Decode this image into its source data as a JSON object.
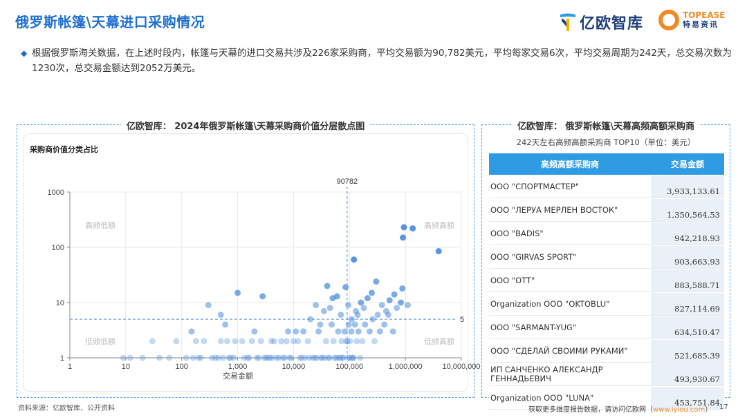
{
  "header": {
    "title": "俄罗斯帐篷\\天幕进口采购情况",
    "logo_yiou": "亿欧智库",
    "logo_topease_top": "TOPEASE",
    "logo_topease_bottom": "特易资讯"
  },
  "summary": "根据俄罗斯海关数据，在上述时段内，帐篷与天幕的进口交易共涉及226家采购商，平均交易额为90,782美元，平均每家交易6次，平均交易周期为242天，总交易次数为1230次，总交易金额达到2052万美元。",
  "left_panel": {
    "title": "亿欧智库： 2024年俄罗斯帐篷\\天幕采购商价值分层散点图",
    "subtitle": "采购商价值分类占比"
  },
  "chart_data": {
    "type": "scatter",
    "xlabel": "交易金额",
    "ylabel": "",
    "x_scale": "log",
    "y_scale": "log",
    "xlim": [
      1,
      10000000
    ],
    "ylim": [
      1,
      1000
    ],
    "x_ticks": [
      "1",
      "10",
      "100",
      "1,000",
      "10,000",
      "100,000",
      "1,000,000",
      "10,000,000"
    ],
    "y_ticks": [
      "1",
      "10",
      "100",
      "1000"
    ],
    "reference_x": 90782,
    "reference_x_label": "90782",
    "reference_y": 5,
    "reference_y_label": "5",
    "quadrant_labels": {
      "top_left": "高频低额",
      "top_right": "高频高额",
      "bottom_left": "低频低额",
      "bottom_right": "低频高额"
    },
    "points": [
      [
        3933133,
        85
      ],
      [
        1350565,
        220
      ],
      [
        942219,
        230
      ],
      [
        903664,
        150
      ],
      [
        120000,
        60
      ],
      [
        883589,
        18
      ],
      [
        827115,
        10
      ],
      [
        634510,
        14
      ],
      [
        521685,
        11
      ],
      [
        493931,
        6
      ],
      [
        453752,
        7
      ],
      [
        380000,
        9
      ],
      [
        300000,
        24
      ],
      [
        250000,
        15
      ],
      [
        210000,
        12
      ],
      [
        180000,
        8
      ],
      [
        160000,
        10
      ],
      [
        140000,
        6
      ],
      [
        130000,
        7
      ],
      [
        110000,
        5
      ],
      [
        95000,
        9
      ],
      [
        85000,
        19
      ],
      [
        70000,
        6
      ],
      [
        60000,
        13
      ],
      [
        50000,
        12
      ],
      [
        45000,
        8
      ],
      [
        40000,
        20
      ],
      [
        35000,
        7
      ],
      [
        30000,
        4
      ],
      [
        25000,
        9
      ],
      [
        20000,
        5
      ],
      [
        15000,
        3
      ],
      [
        12000,
        2
      ],
      [
        10000,
        2
      ],
      [
        8000,
        3
      ],
      [
        6000,
        2
      ],
      [
        5000,
        1
      ],
      [
        4000,
        2
      ],
      [
        3000,
        1
      ],
      [
        2000,
        3
      ],
      [
        1500,
        1
      ],
      [
        1000,
        15
      ],
      [
        900,
        2
      ],
      [
        700,
        1
      ],
      [
        500,
        2
      ],
      [
        400,
        1
      ],
      [
        300,
        9
      ],
      [
        250,
        2
      ],
      [
        200,
        1
      ],
      [
        150,
        3
      ],
      [
        120,
        1
      ],
      [
        80,
        2
      ],
      [
        60,
        1
      ],
      [
        40,
        1
      ],
      [
        30,
        2
      ],
      [
        20,
        1
      ],
      [
        12,
        1
      ],
      [
        9,
        1
      ],
      [
        2800,
        13
      ],
      [
        500,
        6
      ],
      [
        600,
        4
      ],
      [
        1800,
        2
      ],
      [
        2400,
        1
      ],
      [
        3500,
        1
      ],
      [
        4500,
        2
      ],
      [
        7000,
        1
      ],
      [
        9000,
        1
      ],
      [
        11000,
        3
      ],
      [
        14000,
        1
      ],
      [
        18000,
        2
      ],
      [
        22000,
        1
      ],
      [
        28000,
        3
      ],
      [
        33000,
        1
      ],
      [
        38000,
        2
      ],
      [
        42000,
        1
      ],
      [
        48000,
        4
      ],
      [
        52000,
        2
      ],
      [
        58000,
        1
      ],
      [
        63000,
        3
      ],
      [
        67000,
        1
      ],
      [
        72000,
        2
      ],
      [
        77000,
        1
      ],
      [
        82000,
        3
      ],
      [
        88000,
        2
      ],
      [
        93000,
        1
      ],
      [
        97000,
        4
      ],
      [
        102000,
        2
      ],
      [
        108000,
        3
      ],
      [
        115000,
        1
      ],
      [
        125000,
        4
      ],
      [
        135000,
        2
      ],
      [
        145000,
        3
      ],
      [
        155000,
        1
      ],
      [
        170000,
        2
      ],
      [
        190000,
        4
      ],
      [
        230000,
        3
      ],
      [
        260000,
        5
      ],
      [
        280000,
        2
      ],
      [
        320000,
        6
      ],
      [
        350000,
        3
      ],
      [
        420000,
        4
      ],
      [
        600000,
        3
      ],
      [
        700000,
        8
      ],
      [
        1100000,
        9
      ],
      [
        160,
        1
      ],
      [
        180,
        2
      ],
      [
        220,
        1
      ],
      [
        350,
        1
      ],
      [
        450,
        1
      ],
      [
        550,
        1
      ],
      [
        650,
        2
      ],
      [
        750,
        1
      ],
      [
        850,
        1
      ],
      [
        1200,
        2
      ],
      [
        1300,
        1
      ],
      [
        1600,
        1
      ],
      [
        2200,
        1
      ],
      [
        2600,
        2
      ],
      [
        3200,
        1
      ],
      [
        3800,
        1
      ],
      [
        4200,
        1
      ],
      [
        5500,
        1
      ],
      [
        6500,
        1
      ],
      [
        7500,
        2
      ],
      [
        8500,
        1
      ],
      [
        13000,
        1
      ],
      [
        16000,
        1
      ],
      [
        19000,
        1
      ],
      [
        24000,
        1
      ],
      [
        26000,
        1
      ],
      [
        31000,
        1
      ],
      [
        36000,
        1
      ],
      [
        44000,
        1
      ],
      [
        54000,
        1
      ],
      [
        65000,
        1
      ],
      [
        75000,
        1
      ],
      [
        90000,
        2
      ],
      [
        100000,
        1
      ],
      [
        112000,
        1
      ],
      [
        118000,
        1
      ]
    ]
  },
  "right_panel": {
    "title": "亿欧智库： 俄罗斯帐篷\\天幕高频高额采购商",
    "subtitle": "242天左右高频高额采购商 TOP10（单位：美元）",
    "columns": [
      "高频高额采购商",
      "交易金额"
    ],
    "rows": [
      {
        "name": "OOO \"СПОРТМАСТЕР\"",
        "value": "3,933,133.61"
      },
      {
        "name": "OOO \"ЛЕРУА МЕРЛЕН ВОСТОК\"",
        "value": "1,350,564.53"
      },
      {
        "name": "OOO \"BADIS\"",
        "value": "942,218.93"
      },
      {
        "name": "OOO \"GIRVAS SPORT\"",
        "value": "903,663.93"
      },
      {
        "name": "OOO \"OTT\"",
        "value": "883,588.71"
      },
      {
        "name": "Organization OOO \"OKTOBLU\"",
        "value": "827,114.69"
      },
      {
        "name": "OOO \"SARMANT-YUG\"",
        "value": "634,510.47"
      },
      {
        "name": "OOO \"СДЕЛАЙ СВОИМИ РУКАМИ\"",
        "value": "521,685.39"
      },
      {
        "name": "ИП САНЧЕНКО АЛЕКСАНДР ГЕННАДЬЕВИЧ",
        "value": "493,930.67"
      },
      {
        "name": "Organization OOO \"LUNA\"",
        "value": "453,751.84"
      }
    ]
  },
  "footer": {
    "source": "资料来源：亿欧智库、公开资料",
    "link_text": "获取更多维度报告数据，请访问亿欧网（",
    "link_url": "www.iyiou.com",
    "link_end": "）",
    "page_number": "17"
  },
  "colors": {
    "title_blue": "#1f6fd1",
    "panel_border": "#4da3e6",
    "table_header": "#2f9be3",
    "point_color": "#4f8fdc",
    "accent_orange": "#f08a24"
  }
}
